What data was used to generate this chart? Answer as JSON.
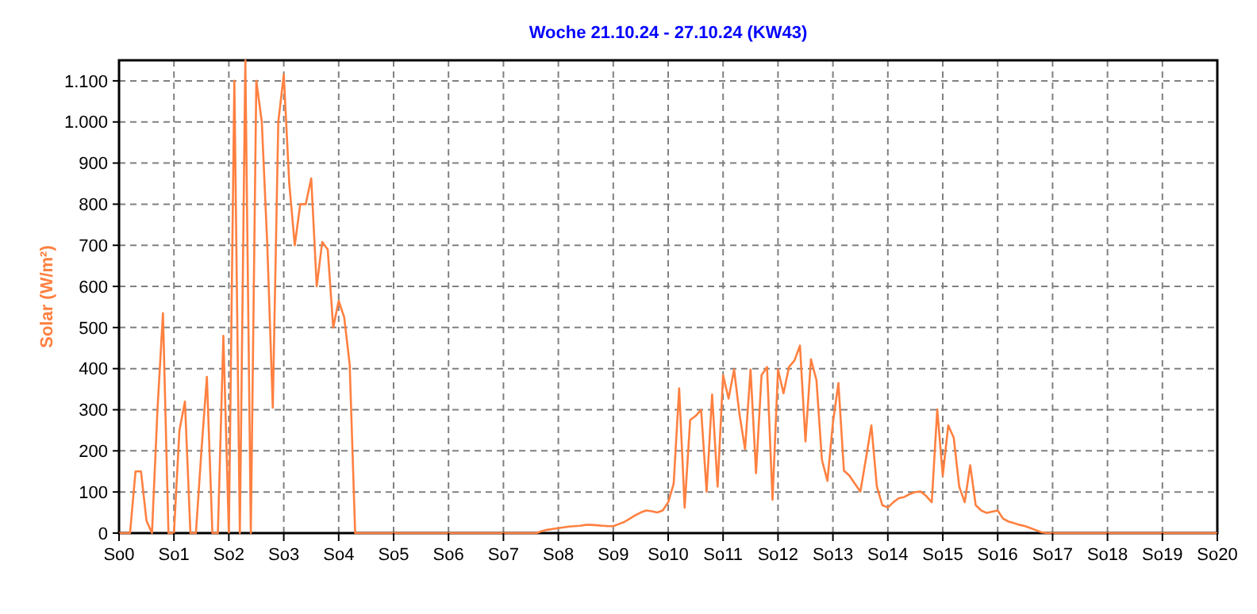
{
  "chart_data": {
    "type": "line",
    "title": "Woche 21.10.24 - 27.10.24 (KW43)",
    "ylabel": "Solar  (W/m²)",
    "ylim": [
      0,
      1150
    ],
    "categories": [
      "So0",
      null,
      null,
      null,
      null,
      null,
      null,
      null,
      null,
      null,
      "So1",
      null,
      null,
      null,
      null,
      null,
      null,
      null,
      null,
      null,
      "So2",
      null,
      null,
      null,
      null,
      null,
      null,
      null,
      null,
      null,
      "So3",
      null,
      null,
      null,
      null,
      null,
      null,
      null,
      null,
      null,
      "So4",
      null,
      null,
      null,
      null,
      null,
      null,
      null,
      null,
      null,
      "So5",
      null,
      null,
      null,
      null,
      null,
      null,
      null,
      null,
      null,
      "So6",
      null,
      null,
      null,
      null,
      null,
      null,
      null,
      null,
      null,
      "So7",
      null,
      null,
      null,
      null,
      null,
      null,
      null,
      null,
      null,
      "So8",
      null,
      null,
      null,
      null,
      null,
      null,
      null,
      null,
      null,
      "So9",
      null,
      null,
      null,
      null,
      null,
      null,
      null,
      null,
      null,
      "So10",
      null,
      null,
      null,
      null,
      null,
      null,
      null,
      null,
      null,
      "So11",
      null,
      null,
      null,
      null,
      null,
      null,
      null,
      null,
      null,
      "So12",
      null,
      null,
      null,
      null,
      null,
      null,
      null,
      null,
      null,
      "So13",
      null,
      null,
      null,
      null,
      null,
      null,
      null,
      null,
      null,
      "So14",
      null,
      null,
      null,
      null,
      null,
      null,
      null,
      null,
      null,
      "So15",
      null,
      null,
      null,
      null,
      null,
      null,
      null,
      null,
      null,
      "So16",
      null,
      null,
      null,
      null,
      null,
      null,
      null,
      null,
      null,
      "So17",
      null,
      null,
      null,
      null,
      null,
      null,
      null,
      null,
      null,
      "So18",
      null,
      null,
      null,
      null,
      null,
      null,
      null,
      null,
      null,
      "So19",
      null,
      null,
      null,
      null,
      null,
      null,
      null,
      null,
      null,
      "So20"
    ],
    "yticks": [
      0,
      100,
      200,
      300,
      400,
      500,
      600,
      700,
      800,
      900,
      {
        "value": 1000,
        "label": "1.000"
      },
      {
        "value": 1100,
        "label": "1.100"
      }
    ],
    "grid": true,
    "line_style": "solid",
    "marker": "none",
    "series": [
      {
        "color": "#ff8040",
        "values": [
          0,
          0,
          0,
          150,
          150,
          30,
          0,
          300,
          535,
          0,
          0,
          250,
          320,
          0,
          0,
          200,
          380,
          0,
          0,
          480,
          0,
          1100,
          0,
          1150,
          0,
          1100,
          1000,
          700,
          305,
          1000,
          1115,
          850,
          700,
          800,
          800,
          863,
          600,
          708,
          690,
          500,
          565,
          525,
          410,
          0,
          0,
          0,
          0,
          0,
          0,
          0,
          0,
          0,
          0,
          0,
          0,
          0,
          0,
          0,
          0,
          0,
          0,
          0,
          0,
          0,
          0,
          0,
          0,
          0,
          0,
          0,
          0,
          0,
          0,
          0,
          0,
          0,
          0,
          5,
          8,
          10,
          12,
          14,
          16,
          17,
          18,
          20,
          20,
          19,
          18,
          17,
          17,
          22,
          27,
          35,
          43,
          50,
          55,
          53,
          50,
          55,
          75,
          120,
          352,
          62,
          275,
          285,
          300,
          101,
          337,
          113,
          384,
          327,
          398,
          288,
          204,
          398,
          146,
          384,
          404,
          81,
          398,
          340,
          404,
          420,
          456,
          223,
          423,
          372,
          178,
          127,
          268,
          365,
          152,
          140,
          120,
          101,
          180,
          262,
          113,
          68,
          62,
          75,
          85,
          88,
          95,
          100,
          101,
          90,
          75,
          301,
          139,
          262,
          232,
          113,
          75,
          165,
          68,
          55,
          49,
          52,
          55,
          35,
          28,
          24,
          20,
          17,
          12,
          7,
          2,
          0,
          0,
          0,
          0,
          0,
          0,
          0,
          0,
          0,
          0,
          0,
          0,
          0,
          0,
          0,
          0,
          0,
          0,
          0,
          0,
          0,
          0,
          0,
          0,
          0,
          0,
          0,
          0,
          0,
          0,
          0,
          0
        ]
      }
    ]
  }
}
